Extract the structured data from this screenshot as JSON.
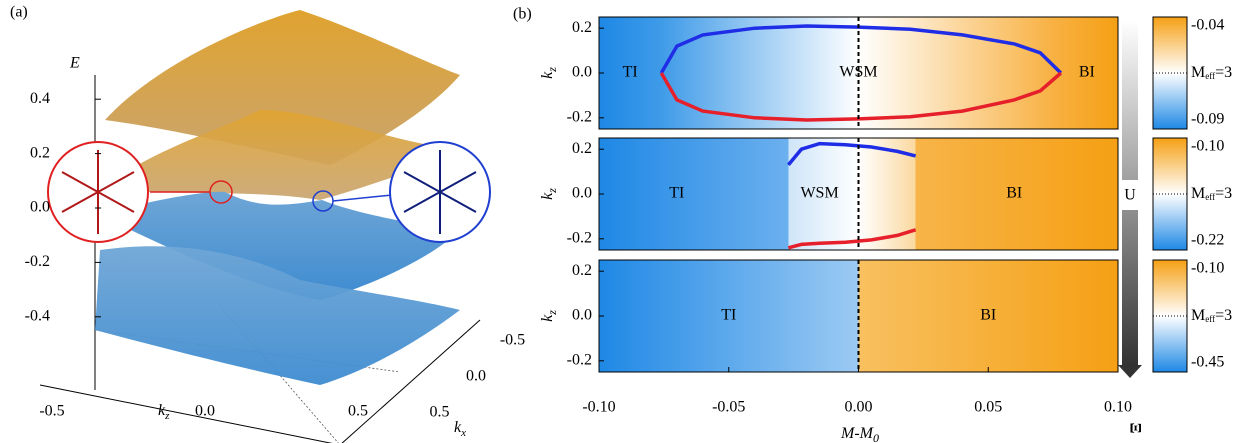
{
  "panel_a": {
    "label": "(a)",
    "e_axis": {
      "label": "E",
      "ticks": [
        0.4,
        0.2,
        {
          "value": 0.0,
          "label": "0.0"
        },
        -0.2,
        -0.4
      ]
    },
    "kz_axis": {
      "label": "k",
      "sub": "z",
      "ticks": [
        {
          "value": -0.5,
          "label": "-0.5"
        },
        {
          "value": 0.0,
          "label": "0.0"
        },
        0.5
      ]
    },
    "kx_axis": {
      "label": "k",
      "sub": "x",
      "ticks": [
        {
          "value": -0.5,
          "label": "-0.5"
        },
        {
          "value": 0.0,
          "label": "0.0"
        },
        0.5
      ]
    }
  },
  "panel_b": {
    "label": "(b)",
    "x_label": {
      "main": "M-M",
      "sub": "0"
    },
    "xlim": [
      -0.1,
      0.1
    ],
    "xticks": [
      {
        "value": -0.1,
        "label": "-0.10"
      },
      -0.05,
      {
        "value": 0.0,
        "label": "0.00"
      },
      0.05,
      {
        "value": 0.1,
        "label": "0.10"
      }
    ],
    "y_label": {
      "main": "k",
      "sub": "z"
    },
    "arrow_label": "U",
    "colorbar_label": "Ξ",
    "meff": {
      "main": "M",
      "sub": "eff",
      "rest": "=3"
    },
    "subplots": [
      {
        "ylim": [
          -0.25,
          0.25
        ],
        "yticks": [
          0.2,
          {
            "value": 0.0,
            "label": "0.0"
          },
          -0.2
        ],
        "phases": [
          "TI",
          "WSM",
          "BI"
        ],
        "colorbar_ticks": [
          {
            "value": -0.04,
            "label": "-0.04"
          },
          {
            "value": -0.09,
            "label": "-0.09"
          }
        ],
        "curves": [
          {
            "color": "#1f2ee6",
            "x": [
              -0.076,
              -0.07,
              -0.06,
              -0.04,
              -0.02,
              0.0,
              0.02,
              0.04,
              0.06,
              0.07,
              0.078
            ],
            "values": [
              0.0,
              0.12,
              0.17,
              0.2,
              0.21,
              0.205,
              0.195,
              0.17,
              0.13,
              0.09,
              0.0
            ]
          },
          {
            "color": "#e6202a",
            "x": [
              -0.076,
              -0.07,
              -0.06,
              -0.04,
              -0.02,
              0.0,
              0.02,
              0.04,
              0.06,
              0.07,
              0.078
            ],
            "values": [
              0.0,
              -0.12,
              -0.17,
              -0.2,
              -0.21,
              -0.205,
              -0.195,
              -0.17,
              -0.12,
              -0.08,
              0.0
            ]
          }
        ]
      },
      {
        "ylim": [
          -0.25,
          0.25
        ],
        "yticks": [
          0.2,
          {
            "value": 0.0,
            "label": "0.0"
          },
          -0.2
        ],
        "phases": [
          "TI",
          "WSM",
          "BI"
        ],
        "colorbar_ticks": [
          {
            "value": -0.1,
            "label": "-0.10"
          },
          {
            "value": -0.22,
            "label": "-0.22"
          }
        ],
        "curves": [
          {
            "color": "#1f2ee6",
            "x": [
              -0.027,
              -0.022,
              -0.015,
              -0.005,
              0.005,
              0.015,
              0.022
            ],
            "values": [
              0.13,
              0.2,
              0.225,
              0.22,
              0.21,
              0.19,
              0.17
            ]
          },
          {
            "color": "#e6202a",
            "x": [
              -0.027,
              -0.022,
              -0.015,
              -0.005,
              0.005,
              0.015,
              0.022
            ],
            "values": [
              -0.24,
              -0.225,
              -0.22,
              -0.215,
              -0.205,
              -0.185,
              -0.16
            ]
          }
        ]
      },
      {
        "ylim": [
          -0.25,
          0.25
        ],
        "yticks": [
          0.2,
          {
            "value": 0.0,
            "label": "0.0"
          },
          -0.2
        ],
        "phases": [
          "TI",
          "BI"
        ],
        "colorbar_ticks": [
          {
            "value": -0.1,
            "label": "-0.10"
          },
          {
            "value": -0.45,
            "label": "-0.45"
          }
        ],
        "curves": []
      }
    ]
  }
}
